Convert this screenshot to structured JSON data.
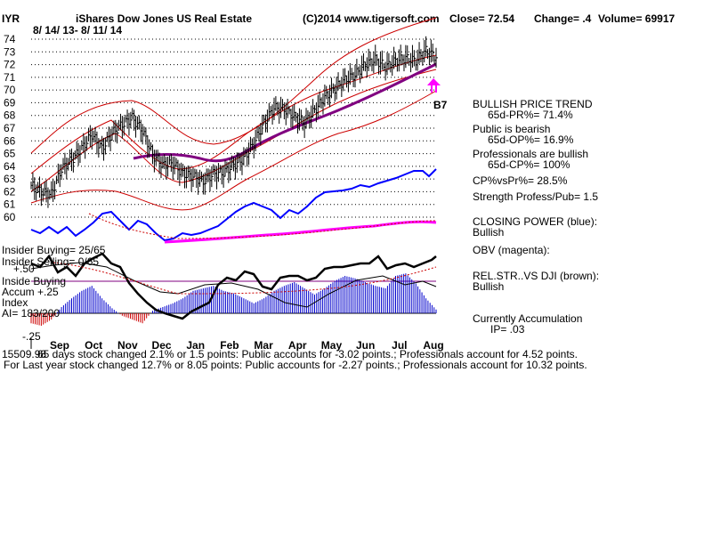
{
  "header": {
    "ticker": "IYR",
    "name": "iShares Dow Jones US Real Estate",
    "copyright": "(C)2014 www.tigersoft.com",
    "close": "Close=  72.54",
    "change": "Change= .4",
    "volume": "Volume= 69917",
    "date_range": "8/ 14/ 13-  8/ 11/ 14"
  },
  "signal": {
    "label": "B7"
  },
  "panel": {
    "trend_title": "BULLISH PRICE TREND",
    "pr": "65d-PR%= 71.4%",
    "public": "Public is bearish",
    "op": "65d-OP%= 16.9%",
    "pros": "Professionals are bullish",
    "cp": "65d-CP%= 100%",
    "cpvspr": "CP%vsPr%=  28.5%",
    "strength": "Strength Profess/Pub= 1.5",
    "closing_power": "CLOSING POWER (blue):",
    "closing_power_value": "Bullish",
    "obv": "OBV (magenta):",
    "relstr": "REL.STR..VS DJI (brown):",
    "relstr_value": "Bullish",
    "accum": "Currently Accumulation",
    "ip": "IP=  .03"
  },
  "insider": {
    "buying": "Insider Buying= 25/65",
    "selling": "Insider Selling= 0/65",
    "plus50": "+.50",
    "buying2": "Inside Buying",
    "accum": "Accum +.25",
    "index": "Index",
    "ai": "AI= 183/200",
    "minus25": "-.25"
  },
  "footer": {
    "line1": "65 days stock changed  2.1% or  1.5 points:  Public accounts for -3.02 points.;  Professionals account for  4.52 points.",
    "line1_prefix": "15509.98",
    "line2": "For Last year stock changed  12.7% or  8.05 points:  Public accounts for -2.27 points.;  Professionals account for  10.32 points."
  },
  "colors": {
    "price_bars": "#000000",
    "bands": "#cc0000",
    "ma": "#800080",
    "closing_power": "#0000ff",
    "obv": "#ff00ff",
    "accumulation": "#0000cc",
    "distribution": "#cc0000",
    "insider_line": "#000000"
  },
  "chart_data": {
    "type": "line",
    "title": "iShares Dow Jones US Real Estate",
    "ylim": [
      60,
      74
    ],
    "y_ticks": [
      "74",
      "73",
      "72",
      "71",
      "70",
      "69",
      "68",
      "67",
      "66",
      "65",
      "64",
      "63",
      "62",
      "61",
      "60"
    ],
    "x_ticks": [
      "Sep",
      "Oct",
      "Nov",
      "Dec",
      "Jan",
      "Feb",
      "Mar",
      "Apr",
      "May",
      "Jun",
      "Jul",
      "Aug"
    ],
    "grid": true,
    "series": [
      {
        "name": "Price",
        "values": [
          62.5,
          62.0,
          61.8,
          63.8,
          64.5,
          65.4,
          66.5,
          65.4,
          66.6,
          67.3,
          67.8,
          66.8,
          64.9,
          64.1,
          64.2,
          63.4,
          63.2,
          62.8,
          63.4,
          63.5,
          64.1,
          64.6,
          65.8,
          67.4,
          68.6,
          68.5,
          67.9,
          67.4,
          68.4,
          69.4,
          70.1,
          70.8,
          71.2,
          72.0,
          72.4,
          71.8,
          72.3,
          72.5,
          72.3,
          73.1,
          72.54
        ]
      },
      {
        "name": "CLOSING POWER (blue)",
        "values": []
      },
      {
        "name": "OBV (magenta)",
        "values": []
      },
      {
        "name": "REL.STR..VS DJI (brown)",
        "values": []
      }
    ],
    "accumulation_index": {
      "ylim": [
        -0.25,
        0.5
      ],
      "values": [
        -0.08,
        -0.1,
        -0.05,
        0.05,
        0.12,
        0.18,
        0.22,
        0.12,
        0.04,
        -0.02,
        -0.05,
        -0.08,
        0.02,
        0.05,
        0.08,
        0.12,
        0.18,
        0.2,
        0.22,
        0.18,
        0.16,
        0.12,
        0.08,
        0.12,
        0.18,
        0.22,
        0.25,
        0.2,
        0.15,
        0.2,
        0.26,
        0.3,
        0.28,
        0.25,
        0.22,
        0.2,
        0.3,
        0.32,
        0.24,
        0.12,
        0.03
      ]
    }
  }
}
